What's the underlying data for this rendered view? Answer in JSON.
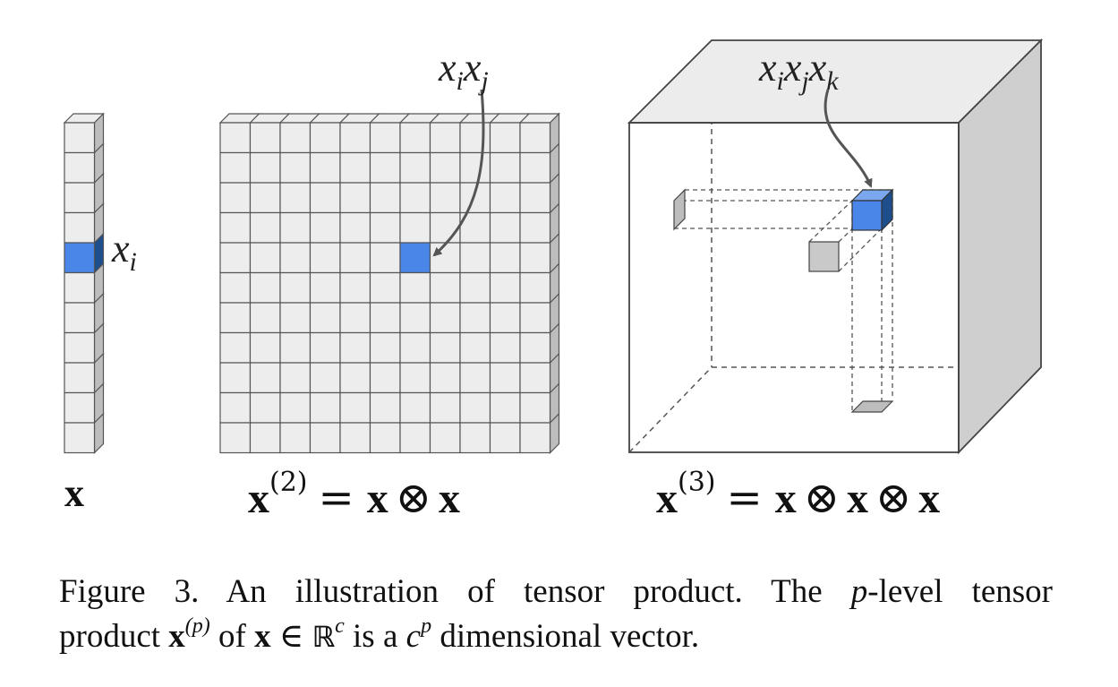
{
  "figure": {
    "vector_label": "x",
    "matrix_label": {
      "base": "x",
      "sup": "(2)",
      "eq": "=",
      "a": "x",
      "otimes": "⊗",
      "b": "x"
    },
    "tensor_label": {
      "base": "x",
      "sup": "(3)",
      "eq": "=",
      "a": "x",
      "otimes1": "⊗",
      "b": "x",
      "otimes2": "⊗",
      "c": "x"
    },
    "annot_xi": {
      "x": "x",
      "i": "i"
    },
    "annot_xixj": {
      "x1": "x",
      "i": "i",
      "x2": "x",
      "j": "j"
    },
    "annot_xixjxk": {
      "x1": "x",
      "i": "i",
      "x2": "x",
      "j": "j",
      "x3": "x",
      "k": "k"
    },
    "colors": {
      "cell_fill": "#ededed",
      "cell_stroke": "#555555",
      "side_fill": "#bdbdbd",
      "highlight": "#4a86e8",
      "highlight_dark": "#1f4e8c",
      "cube_top": "#ececec",
      "cube_side": "#cfcfcf"
    }
  },
  "caption": {
    "prefix": "Figure 3.",
    "text1": " An illustration of tensor product.  The ",
    "p1": "p",
    "text2": "-level tensor",
    "text3": "product ",
    "x1": "x",
    "sup1": "(p)",
    "text4": " of ",
    "x2": "x",
    "in": " ∈ ",
    "R": "ℝ",
    "sup2": "c",
    "text5": " is a ",
    "c": "c",
    "sup3": "p",
    "text6": " dimensional vector."
  }
}
